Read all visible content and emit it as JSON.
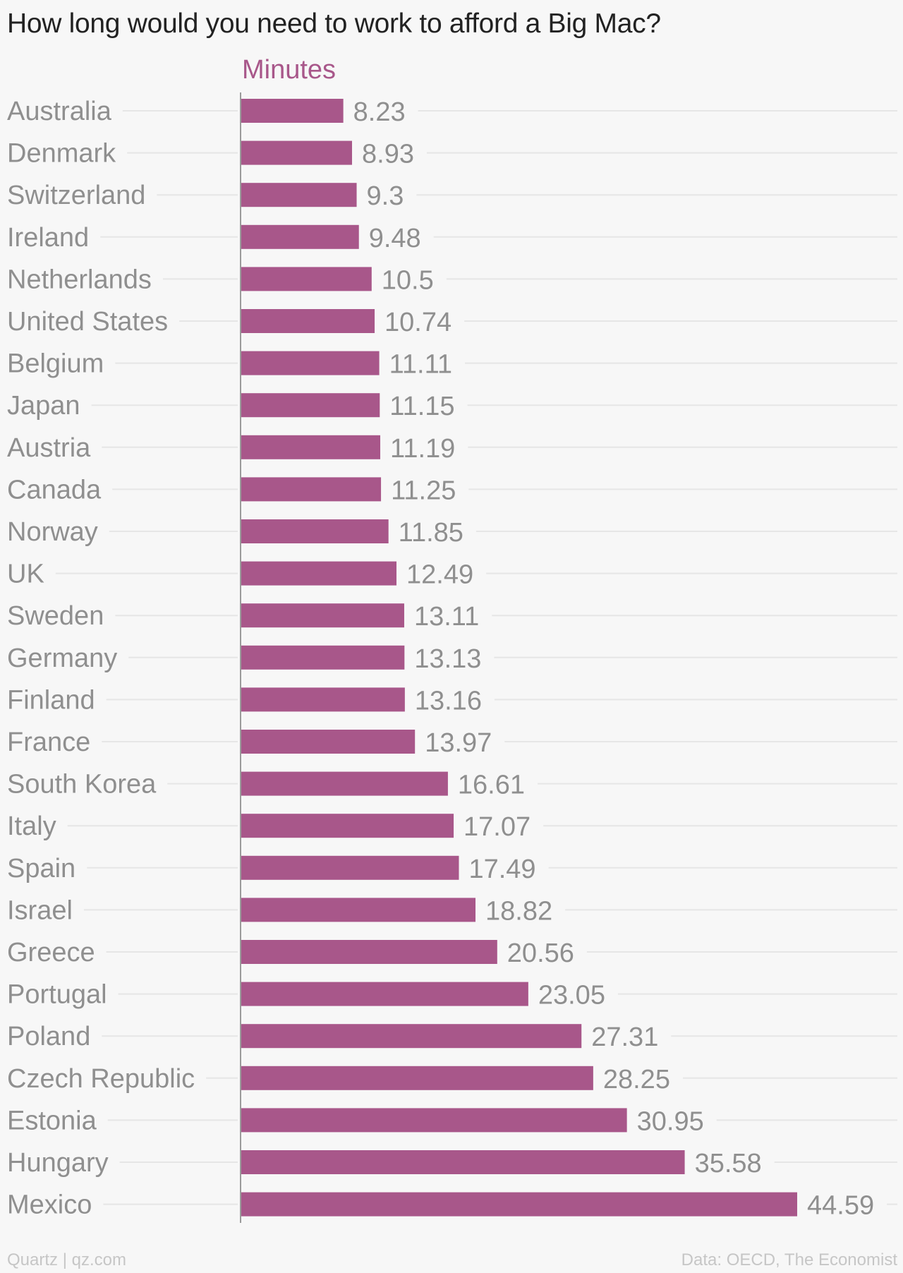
{
  "title": "How long would you need to work to afford a Big Mac?",
  "footer": {
    "source_left": "Quartz | qz.com",
    "source_right": "Data: OECD, The Economist"
  },
  "colors": {
    "bar": "#a8578a",
    "label": "#8f8f8f",
    "value": "#8f8f8f",
    "gridline": "#e6e6e6",
    "axis": "#9a9a9a"
  },
  "chart_data": {
    "type": "bar",
    "orientation": "horizontal",
    "title": "How long would you need to work to afford a Big Mac?",
    "grid": true,
    "series": [
      {
        "name": "Minutes",
        "values": [
          8.23,
          8.93,
          9.3,
          9.48,
          10.5,
          10.74,
          11.11,
          11.15,
          11.19,
          11.25,
          11.85,
          12.49,
          13.11,
          13.13,
          13.16,
          13.97,
          16.61,
          17.07,
          17.49,
          18.82,
          20.56,
          23.05,
          27.31,
          28.25,
          30.95,
          35.58,
          44.59
        ]
      }
    ],
    "categories": [
      "Australia",
      "Denmark",
      "Switzerland",
      "Ireland",
      "Netherlands",
      "United States",
      "Belgium",
      "Japan",
      "Austria",
      "Canada",
      "Norway",
      "UK",
      "Sweden",
      "Germany",
      "Finland",
      "France",
      "South Korea",
      "Italy",
      "Spain",
      "Israel",
      "Greece",
      "Portugal",
      "Poland",
      "Czech Republic",
      "Estonia",
      "Hungary",
      "Mexico"
    ],
    "value_labels": [
      "8.23",
      "8.93",
      "9.3",
      "9.48",
      "10.5",
      "10.74",
      "11.11",
      "11.15",
      "11.19",
      "11.25",
      "11.85",
      "12.49",
      "13.11",
      "13.13",
      "13.16",
      "13.97",
      "16.61",
      "17.07",
      "17.49",
      "18.82",
      "20.56",
      "23.05",
      "27.31",
      "28.25",
      "30.95",
      "35.58",
      "44.59"
    ],
    "xlim": [
      0,
      44.59
    ]
  }
}
